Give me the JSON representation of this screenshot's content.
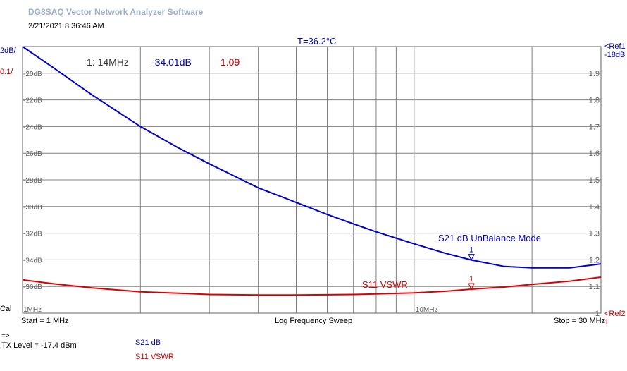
{
  "app": {
    "title": "DG8SAQ Vector Network Analyzer Software",
    "timestamp": "2/21/2021   8:36:46 AM"
  },
  "header": {
    "temperature": "T=36.2°C",
    "s21_scale": "2dB/",
    "s11_scale": "0.1/",
    "ref1_line1": "<Ref1",
    "ref1_line2": "-18dB",
    "ref2_line1": "<Ref2",
    "ref2_line2": "1"
  },
  "marker": {
    "freq": "1: 14MHz",
    "s21": "-34.01dB",
    "s11": "1.09"
  },
  "footer": {
    "cal": "Cal",
    "start": "Start = 1 MHz",
    "sweep": "Log Frequency Sweep",
    "stop": "Stop = 30 MHz",
    "arrow": "=>",
    "tx_level": "TX Level = -17.4 dBm",
    "legend_s21": "S21   dB",
    "legend_s11": "S11   VSWR"
  },
  "colors": {
    "s21": "#0000cc",
    "s11": "#dd0000",
    "grid": "#808080"
  },
  "chart_data": {
    "type": "line",
    "x_scale": "log",
    "xlim": [
      1,
      30
    ],
    "x_unit": "MHz",
    "x_tick_labels": [
      {
        "label": "1MHz",
        "value": 1
      },
      {
        "label": "10MHz",
        "value": 10
      }
    ],
    "left_axis": {
      "ylim": [
        -38,
        -18
      ],
      "tick_labels": [
        "-20dB",
        "-22dB",
        "-24dB",
        "-26dB",
        "-28dB",
        "-30dB",
        "-32dB",
        "-34dB",
        "-36dB"
      ],
      "tick_values": [
        -20,
        -22,
        -24,
        -26,
        -28,
        -30,
        -32,
        -34,
        -36
      ]
    },
    "right_axis": {
      "ylim": [
        1.0,
        2.0
      ],
      "tick_labels": [
        "1.9",
        "1.8",
        "1.7",
        "1.6",
        "1.5",
        "1.4",
        "1.3",
        "1.2",
        "1.1",
        "1"
      ],
      "tick_values": [
        1.9,
        1.8,
        1.7,
        1.6,
        1.5,
        1.4,
        1.3,
        1.2,
        1.1,
        1.0
      ]
    },
    "series": [
      {
        "name": "S21 dB UnBalance Mode",
        "axis": "left",
        "x": [
          1,
          1.2,
          1.5,
          2,
          2.5,
          3,
          4,
          5,
          6,
          7,
          8,
          10,
          12,
          14,
          17,
          20,
          25,
          30
        ],
        "y": [
          -18.0,
          -19.6,
          -21.6,
          -24.0,
          -25.6,
          -26.8,
          -28.6,
          -29.7,
          -30.6,
          -31.3,
          -31.9,
          -32.8,
          -33.5,
          -34.01,
          -34.5,
          -34.6,
          -34.6,
          -34.3
        ]
      },
      {
        "name": "S11 VSWR",
        "axis": "right",
        "x": [
          1,
          1.2,
          1.5,
          2,
          2.5,
          3,
          4,
          5,
          6,
          7,
          8,
          10,
          12,
          14,
          17,
          20,
          25,
          30
        ],
        "y": [
          1.125,
          1.11,
          1.095,
          1.08,
          1.075,
          1.07,
          1.068,
          1.068,
          1.069,
          1.07,
          1.072,
          1.076,
          1.082,
          1.09,
          1.098,
          1.108,
          1.12,
          1.135
        ]
      }
    ],
    "markers": [
      {
        "label": "1",
        "x": 14,
        "series": "S21 dB UnBalance Mode"
      },
      {
        "label": "1",
        "x": 14,
        "series": "S11 VSWR"
      }
    ]
  }
}
